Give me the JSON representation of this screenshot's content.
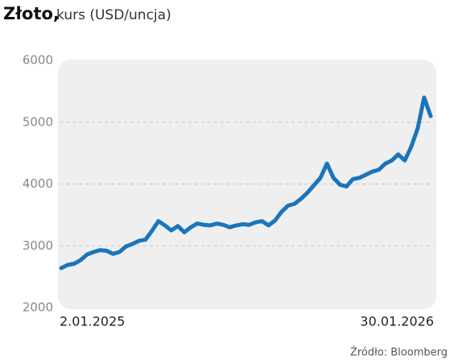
{
  "chart_data": {
    "type": "line",
    "title": "Złoto,",
    "subtitle": "kurs (USD/uncja)",
    "source": "Źródło: Bloomberg",
    "categories": [
      "2.01.2025",
      null,
      null,
      null,
      null,
      null,
      null,
      null,
      null,
      null,
      null,
      null,
      null,
      null,
      null,
      null,
      null,
      null,
      null,
      null,
      null,
      null,
      null,
      null,
      null,
      null,
      null,
      null,
      null,
      null,
      null,
      null,
      null,
      null,
      null,
      null,
      null,
      null,
      null,
      null,
      null,
      null,
      null,
      null,
      null,
      null,
      null,
      null,
      null,
      null,
      null,
      null,
      null,
      null,
      null,
      null,
      null,
      "30.01.2026"
    ],
    "series": [
      {
        "color": "#1a75bb",
        "values": [
          2640,
          2690,
          2710,
          2770,
          2860,
          2900,
          2930,
          2920,
          2870,
          2900,
          2990,
          3030,
          3080,
          3100,
          3240,
          3400,
          3330,
          3250,
          3320,
          3220,
          3300,
          3360,
          3340,
          3330,
          3360,
          3340,
          3300,
          3330,
          3350,
          3340,
          3380,
          3400,
          3330,
          3410,
          3550,
          3650,
          3680,
          3760,
          3860,
          3980,
          4100,
          4330,
          4100,
          3990,
          3960,
          4080,
          4100,
          4150,
          4200,
          4230,
          4330,
          4380,
          4480,
          4380,
          4600,
          4900,
          5400,
          5100
        ]
      }
    ],
    "ylim": [
      2000,
      6000
    ],
    "yticks": [
      2000,
      3000,
      4000,
      5000,
      6000
    ],
    "grid": true
  }
}
